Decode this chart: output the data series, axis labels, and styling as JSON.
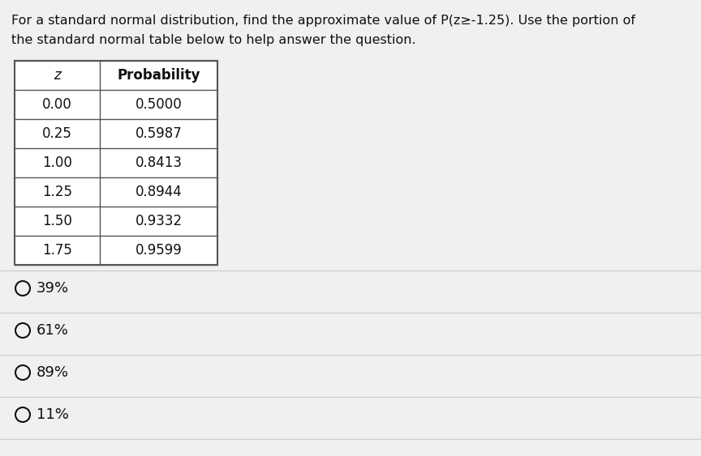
{
  "title_line1": "For a standard normal distribution, find the approximate value of P(z≥-1.25). Use the portion of",
  "title_line2": "the standard normal table below to help answer the question.",
  "table_headers": [
    "z",
    "Probability"
  ],
  "table_data": [
    [
      "0.00",
      "0.5000"
    ],
    [
      "0.25",
      "0.5987"
    ],
    [
      "1.00",
      "0.8413"
    ],
    [
      "1.25",
      "0.8944"
    ],
    [
      "1.50",
      "0.9332"
    ],
    [
      "1.75",
      "0.9599"
    ]
  ],
  "choices": [
    "39%",
    "61%",
    "89%",
    "11%"
  ],
  "bg_color": "#f0f0f0",
  "table_bg": "#f5f5f5",
  "text_color": "#111111",
  "title_fontsize": 11.5,
  "table_fontsize": 12,
  "choice_fontsize": 13
}
